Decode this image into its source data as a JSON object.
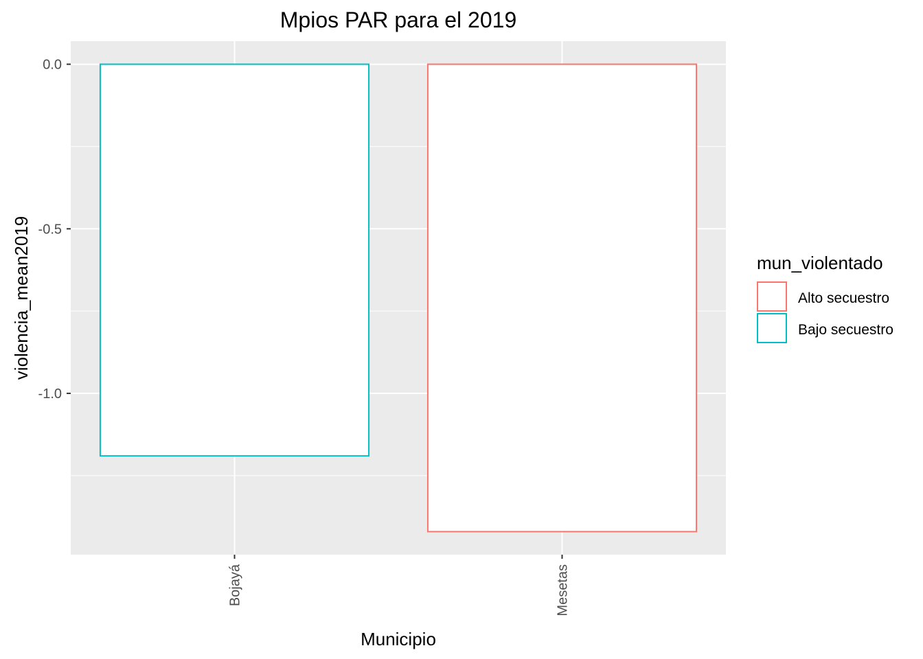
{
  "chart_data": {
    "type": "bar",
    "title": "Mpios PAR para el 2019",
    "xlabel": "Municipio",
    "ylabel": "violencia_mean2019",
    "categories": [
      "Bojayá",
      "Mesetas"
    ],
    "values": [
      -1.19,
      -1.42
    ],
    "bar_groups": [
      "Bajo secuestro",
      "Alto secuestro"
    ],
    "y_ticks": [
      {
        "value": 0.0,
        "label": "0.0"
      },
      {
        "value": -0.5,
        "label": "-0.5"
      },
      {
        "value": -1.0,
        "label": "-1.0"
      }
    ],
    "ylim": [
      -1.49,
      0.07
    ],
    "grid": true,
    "panel_background": "#ebebeb",
    "bar_fill": "#ffffff",
    "legend": {
      "title": "mun_violentado",
      "placement": "right",
      "entries": [
        {
          "label": "Alto secuestro",
          "color": "#f8766d"
        },
        {
          "label": "Bajo secuestro",
          "color": "#00bfc4"
        }
      ]
    }
  }
}
